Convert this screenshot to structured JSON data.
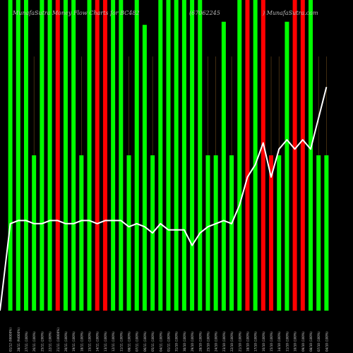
{
  "header": {
    "left": "MunafaSutra Money Flow Charts for BC482",
    "mid": "(67062245",
    "right": ") MunafaSutra.com"
  },
  "chart_data": {
    "type": "bar",
    "title": "MunafaSutra Money Flow Charts for BC482 (67062245) MunafaSutra.com",
    "categories": [
      "01/12 (90000%)",
      "28/11 (94000%)",
      "27/11 (100%)",
      "26/11 (100%)",
      "25/11 (200%)",
      "22/11 (100%)",
      "21/11 (10000%)",
      "20/11 (100%)",
      "19/11 (100%)",
      "18/11 (100%)",
      "15/11 (100%)",
      "14/11 (100%)",
      "13/11 (100%)",
      "12/11 (100%)",
      "11/11 (100%)",
      "08/11 (100%)",
      "07/11 (100%)",
      "06/11 (100%)",
      "05/11 (100%)",
      "04/11 (100%)",
      "01/11 (100%)",
      "31/10 (100%)",
      "30/10 (100%)",
      "29/10 (100%)",
      "28/10 (100%)",
      "25/10 (100%)",
      "24/10 (100%)",
      "23/10 (100%)",
      "22/10 (100%)",
      "21/10 (100%)",
      "18/10 (100%)",
      "17/10 (100%)",
      "16/10 (100%)",
      "15/10 (100%)",
      "14/10 (100%)",
      "11/10 (100%)",
      "10/10 (100%)",
      "09/10 (100%)",
      "08/10 (100%)",
      "07/10 (100%)",
      "04/10 (100%)"
    ],
    "series": [
      {
        "values": [
          100,
          100,
          100,
          50,
          100,
          100,
          100,
          100,
          100,
          50,
          100,
          100,
          100,
          100,
          100,
          50,
          100,
          92,
          50,
          100,
          100,
          100,
          100,
          100,
          100,
          50,
          50,
          93,
          50,
          100,
          100,
          100,
          100,
          50,
          50,
          93,
          100,
          100,
          100,
          50,
          50
        ]
      },
      {
        "values": [
          28,
          29,
          29,
          28,
          28,
          29,
          29,
          28,
          28,
          29,
          29,
          28,
          29,
          29,
          29,
          27,
          28,
          27,
          25,
          28,
          26,
          26,
          26,
          21,
          25,
          27,
          28,
          29,
          28,
          34,
          43,
          47,
          54,
          43,
          52,
          55,
          52,
          55,
          52,
          62,
          72
        ]
      }
    ],
    "colors": [
      "#00ff00",
      "#00ff00",
      "#00ff00",
      "#00ff00",
      "#00ff00",
      "#00ff00",
      "#ff0000",
      "#00ff00",
      "#00ff00",
      "#00ff00",
      "#00ff00",
      "#ff0000",
      "#ff0000",
      "#00ff00",
      "#00ff00",
      "#00ff00",
      "#00ff00",
      "#00ff00",
      "#00ff00",
      "#00ff00",
      "#00ff00",
      "#00ff00",
      "#00ff00",
      "#00ff00",
      "#00ff00",
      "#00ff00",
      "#00ff00",
      "#00ff00",
      "#00ff00",
      "#00ff00",
      "#ff0000",
      "#00ff00",
      "#ff0000",
      "#ff0000",
      "#00ff00",
      "#00ff00",
      "#ff0000",
      "#ff0000",
      "#00ff00",
      "#00ff00",
      "#00ff00"
    ],
    "line_color": "#ffffff",
    "grid_color": "#6b4a1a",
    "ylim": [
      0,
      100
    ]
  }
}
